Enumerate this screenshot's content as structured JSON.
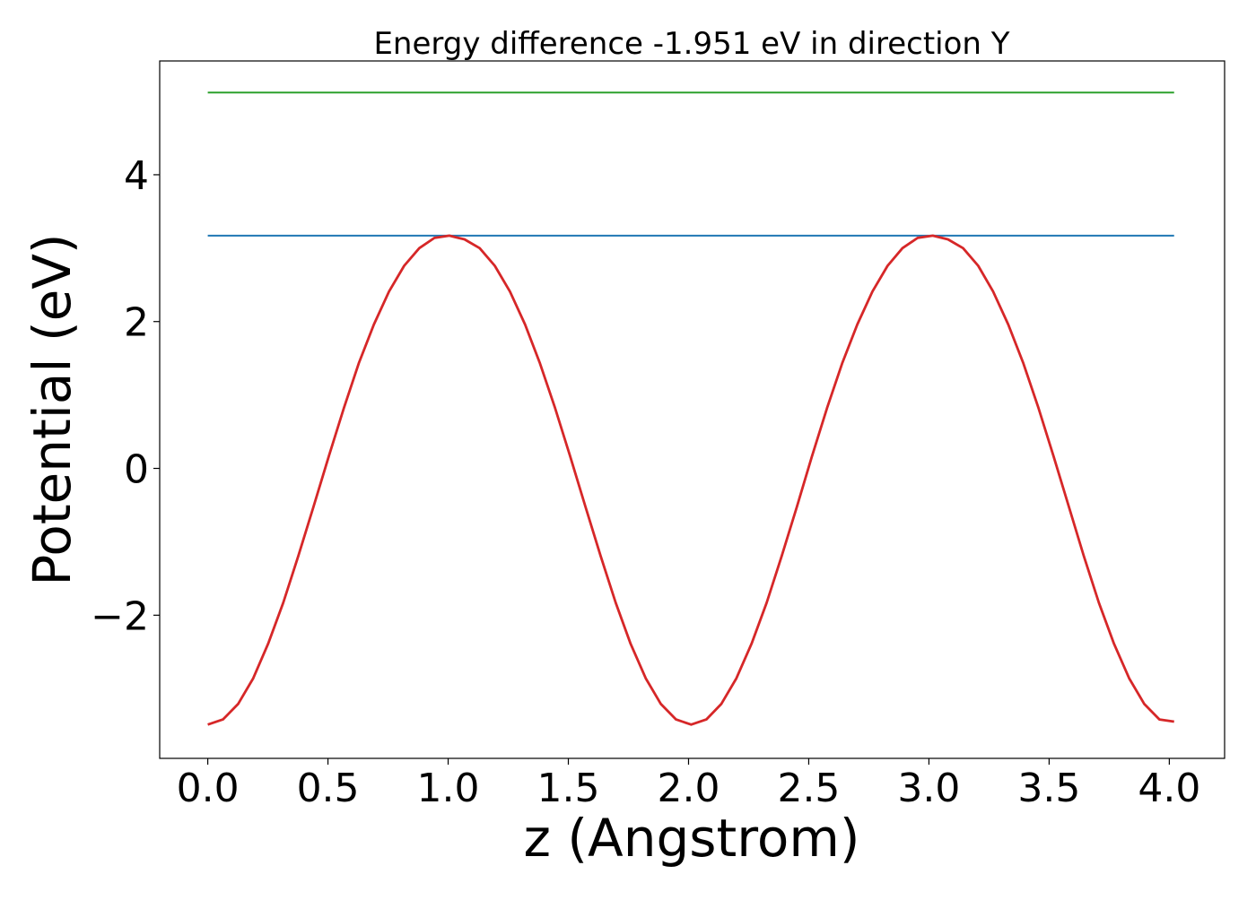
{
  "chart_data": {
    "type": "line",
    "title": "Energy difference -1.951 eV in direction Y",
    "xlabel": "z (Angstrom)",
    "ylabel": "Potential (eV)",
    "xlim": [
      -0.2,
      4.23
    ],
    "ylim": [
      -3.95,
      5.55
    ],
    "xticks": [
      0.0,
      0.5,
      1.0,
      1.5,
      2.0,
      2.5,
      3.0,
      3.5,
      4.0
    ],
    "xtick_labels": [
      "0.0",
      "0.5",
      "1.0",
      "1.5",
      "2.0",
      "2.5",
      "3.0",
      "3.5",
      "4.0"
    ],
    "yticks": [
      -2,
      0,
      2,
      4
    ],
    "ytick_labels": [
      "−2",
      "0",
      "2",
      "4"
    ],
    "grid": false,
    "legend": "none",
    "series": [
      {
        "color": "#1f77b4",
        "x": [
          0.0,
          4.02
        ],
        "y": [
          3.17,
          3.17
        ]
      },
      {
        "color": "#2ca02c",
        "x": [
          0.0,
          4.02
        ],
        "y": [
          5.12,
          5.12
        ]
      },
      {
        "color": "#d62728",
        "x": [
          0.0,
          0.063,
          0.126,
          0.189,
          0.251,
          0.314,
          0.377,
          0.44,
          0.503,
          0.566,
          0.628,
          0.691,
          0.754,
          0.817,
          0.88,
          0.943,
          1.005,
          1.068,
          1.131,
          1.194,
          1.257,
          1.32,
          1.382,
          1.445,
          1.508,
          1.571,
          1.634,
          1.697,
          1.759,
          1.822,
          1.885,
          1.948,
          2.011,
          2.074,
          2.136,
          2.199,
          2.262,
          2.325,
          2.388,
          2.451,
          2.513,
          2.576,
          2.639,
          2.702,
          2.765,
          2.828,
          2.89,
          2.953,
          3.016,
          3.079,
          3.142,
          3.205,
          3.267,
          3.33,
          3.393,
          3.456,
          3.519,
          3.582,
          3.644,
          3.707,
          3.77,
          3.833,
          3.896,
          3.959,
          4.02
        ],
        "y": [
          -3.49,
          -3.42,
          -3.21,
          -2.86,
          -2.39,
          -1.83,
          -1.19,
          -0.52,
          0.16,
          0.82,
          1.43,
          1.96,
          2.41,
          2.76,
          3.0,
          3.14,
          3.17,
          3.12,
          3.0,
          2.76,
          2.41,
          1.96,
          1.43,
          0.82,
          0.16,
          -0.52,
          -1.19,
          -1.83,
          -2.39,
          -2.86,
          -3.21,
          -3.42,
          -3.49,
          -3.42,
          -3.21,
          -2.86,
          -2.39,
          -1.83,
          -1.19,
          -0.52,
          0.16,
          0.82,
          1.43,
          1.96,
          2.41,
          2.76,
          3.0,
          3.14,
          3.17,
          3.12,
          3.0,
          2.76,
          2.41,
          1.96,
          1.43,
          0.82,
          0.16,
          -0.52,
          -1.19,
          -1.83,
          -2.39,
          -2.86,
          -3.21,
          -3.42,
          -3.45
        ]
      }
    ]
  }
}
